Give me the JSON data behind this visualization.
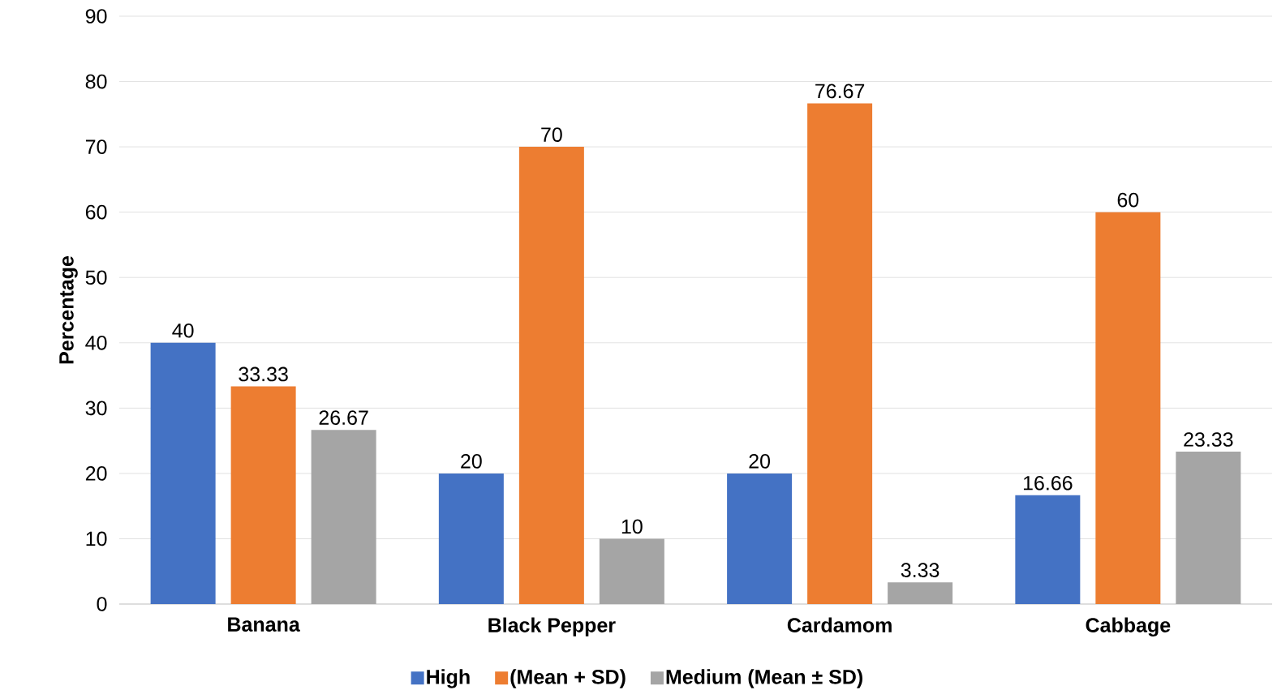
{
  "chart_data": {
    "type": "bar",
    "ylabel": "Percentage",
    "categories": [
      "Banana",
      "Black Pepper",
      "Cardamom",
      "Cabbage"
    ],
    "series": [
      {
        "name": "High",
        "color": "#4472c4",
        "values": [
          40,
          20,
          20,
          16.66
        ]
      },
      {
        "name": "(Mean + SD)",
        "color": "#ed7d31",
        "values": [
          33.33,
          70,
          76.67,
          60
        ]
      },
      {
        "name": "Medium (Mean ± SD)",
        "color": "#a5a5a5",
        "values": [
          26.67,
          10,
          3.33,
          23.33
        ]
      }
    ],
    "ylim": [
      0,
      90
    ],
    "yticks": [
      0,
      10,
      20,
      30,
      40,
      50,
      60,
      70,
      80,
      90
    ],
    "grid": "y",
    "legend": "bottom",
    "data_labels": true
  }
}
